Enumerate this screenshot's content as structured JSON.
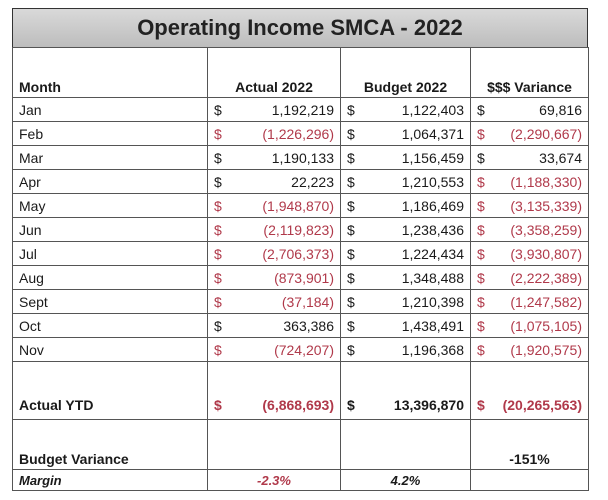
{
  "title": "Operating Income SMCA - 2022",
  "currency": "$",
  "columns": [
    "Month",
    "Actual 2022",
    "Budget 2022",
    "$$$ Variance"
  ],
  "rows": [
    [
      "Jan",
      "1,192,219",
      "1,122,403",
      "69,816"
    ],
    [
      "Feb",
      "(1,226,296)",
      "1,064,371",
      "(2,290,667)"
    ],
    [
      "Mar",
      "1,190,133",
      "1,156,459",
      "33,674"
    ],
    [
      "Apr",
      "22,223",
      "1,210,553",
      "(1,188,330)"
    ],
    [
      "May",
      "(1,948,870)",
      "1,186,469",
      "(3,135,339)"
    ],
    [
      "Jun",
      "(2,119,823)",
      "1,238,436",
      "(3,358,259)"
    ],
    [
      "Jul",
      "(2,706,373)",
      "1,224,434",
      "(3,930,807)"
    ],
    [
      "Aug",
      "(873,901)",
      "1,348,488",
      "(2,222,389)"
    ],
    [
      "Sept",
      "(37,184)",
      "1,210,398",
      "(1,247,582)"
    ],
    [
      "Oct",
      "363,386",
      "1,438,491",
      "(1,075,105)"
    ],
    [
      "Nov",
      "(724,207)",
      "1,196,368",
      "(1,920,575)"
    ]
  ],
  "total": {
    "label": "Actual YTD",
    "values": [
      "(6,868,693)",
      "13,396,870",
      "(20,265,563)"
    ]
  },
  "budget_variance": {
    "label": "Budget Variance",
    "value": "-151%"
  },
  "margin": {
    "label": "Margin",
    "values": [
      "-2.3%",
      "4.2%"
    ]
  }
}
